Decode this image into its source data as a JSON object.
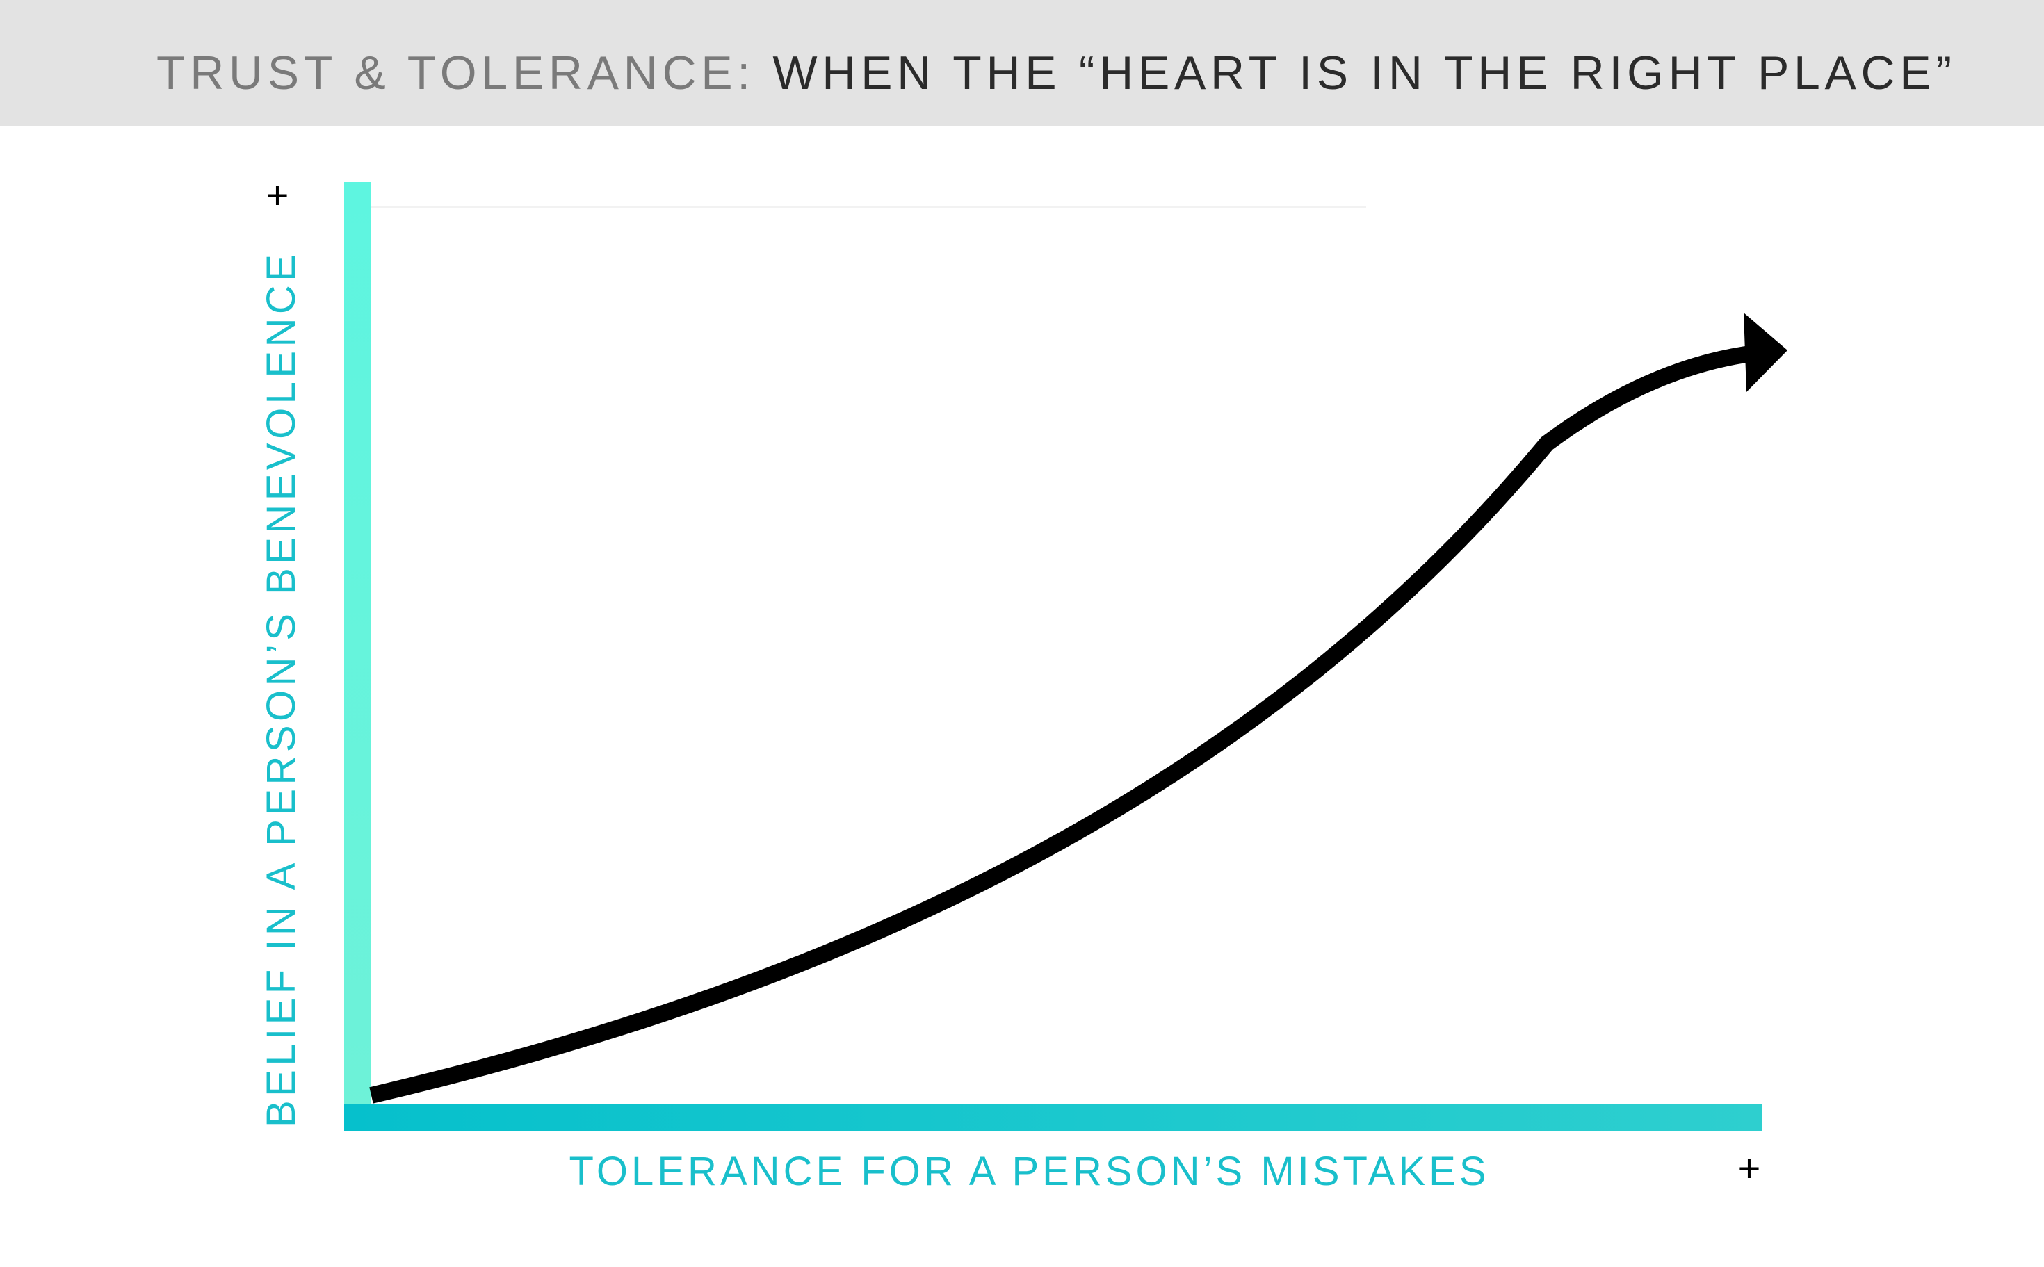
{
  "header": {
    "title_prefix": "TRUST & TOLERANCE:",
    "title_main": "WHEN THE “HEART IS IN THE RIGHT PLACE”"
  },
  "axes": {
    "y_label": "BELIEF IN A PERSON’S  BENEVOLENCE",
    "y_end": "+",
    "x_label": "TOLERANCE FOR A PERSON’S MISTAKES",
    "x_end": "+"
  }
}
